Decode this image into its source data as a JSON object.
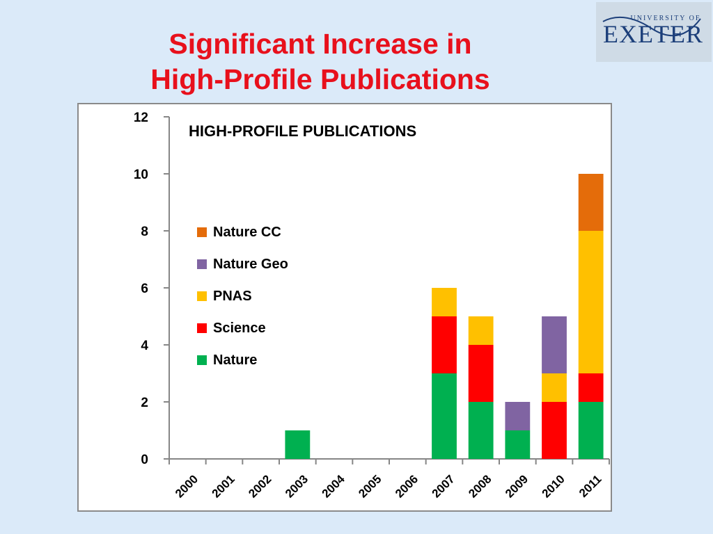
{
  "slide": {
    "title_line1": "Significant Increase in",
    "title_line2": "High-Profile Publications",
    "title_color": "#e8101c",
    "background": "#dbeaf9"
  },
  "logo": {
    "top_text": "UNIVERSITY OF",
    "main_text": "EXETER",
    "color": "#1c3f7a"
  },
  "chart_data": {
    "type": "bar",
    "stacked": true,
    "title": "HIGH-PROFILE PUBLICATIONS",
    "xlabel": "",
    "ylabel": "",
    "categories": [
      "2000",
      "2001",
      "2002",
      "2003",
      "2004",
      "2005",
      "2006",
      "2007",
      "2008",
      "2009",
      "2010",
      "2011"
    ],
    "ylim": [
      0,
      12
    ],
    "yticks": [
      0,
      2,
      4,
      6,
      8,
      10,
      12
    ],
    "grid": false,
    "legend_position": "left",
    "series": [
      {
        "name": "Nature",
        "color": "#00b050",
        "values": [
          0,
          0,
          0,
          1,
          0,
          0,
          0,
          3,
          2,
          1,
          0,
          2
        ]
      },
      {
        "name": "Science",
        "color": "#ff0000",
        "values": [
          0,
          0,
          0,
          0,
          0,
          0,
          0,
          2,
          2,
          0,
          2,
          1
        ]
      },
      {
        "name": "PNAS",
        "color": "#ffc000",
        "values": [
          0,
          0,
          0,
          0,
          0,
          0,
          0,
          1,
          1,
          0,
          1,
          5
        ]
      },
      {
        "name": "Nature Geo",
        "color": "#8064a2",
        "values": [
          0,
          0,
          0,
          0,
          0,
          0,
          0,
          0,
          0,
          1,
          2,
          0
        ]
      },
      {
        "name": "Nature CC",
        "color": "#e46c0a",
        "values": [
          0,
          0,
          0,
          0,
          0,
          0,
          0,
          0,
          0,
          0,
          0,
          2
        ]
      }
    ]
  }
}
